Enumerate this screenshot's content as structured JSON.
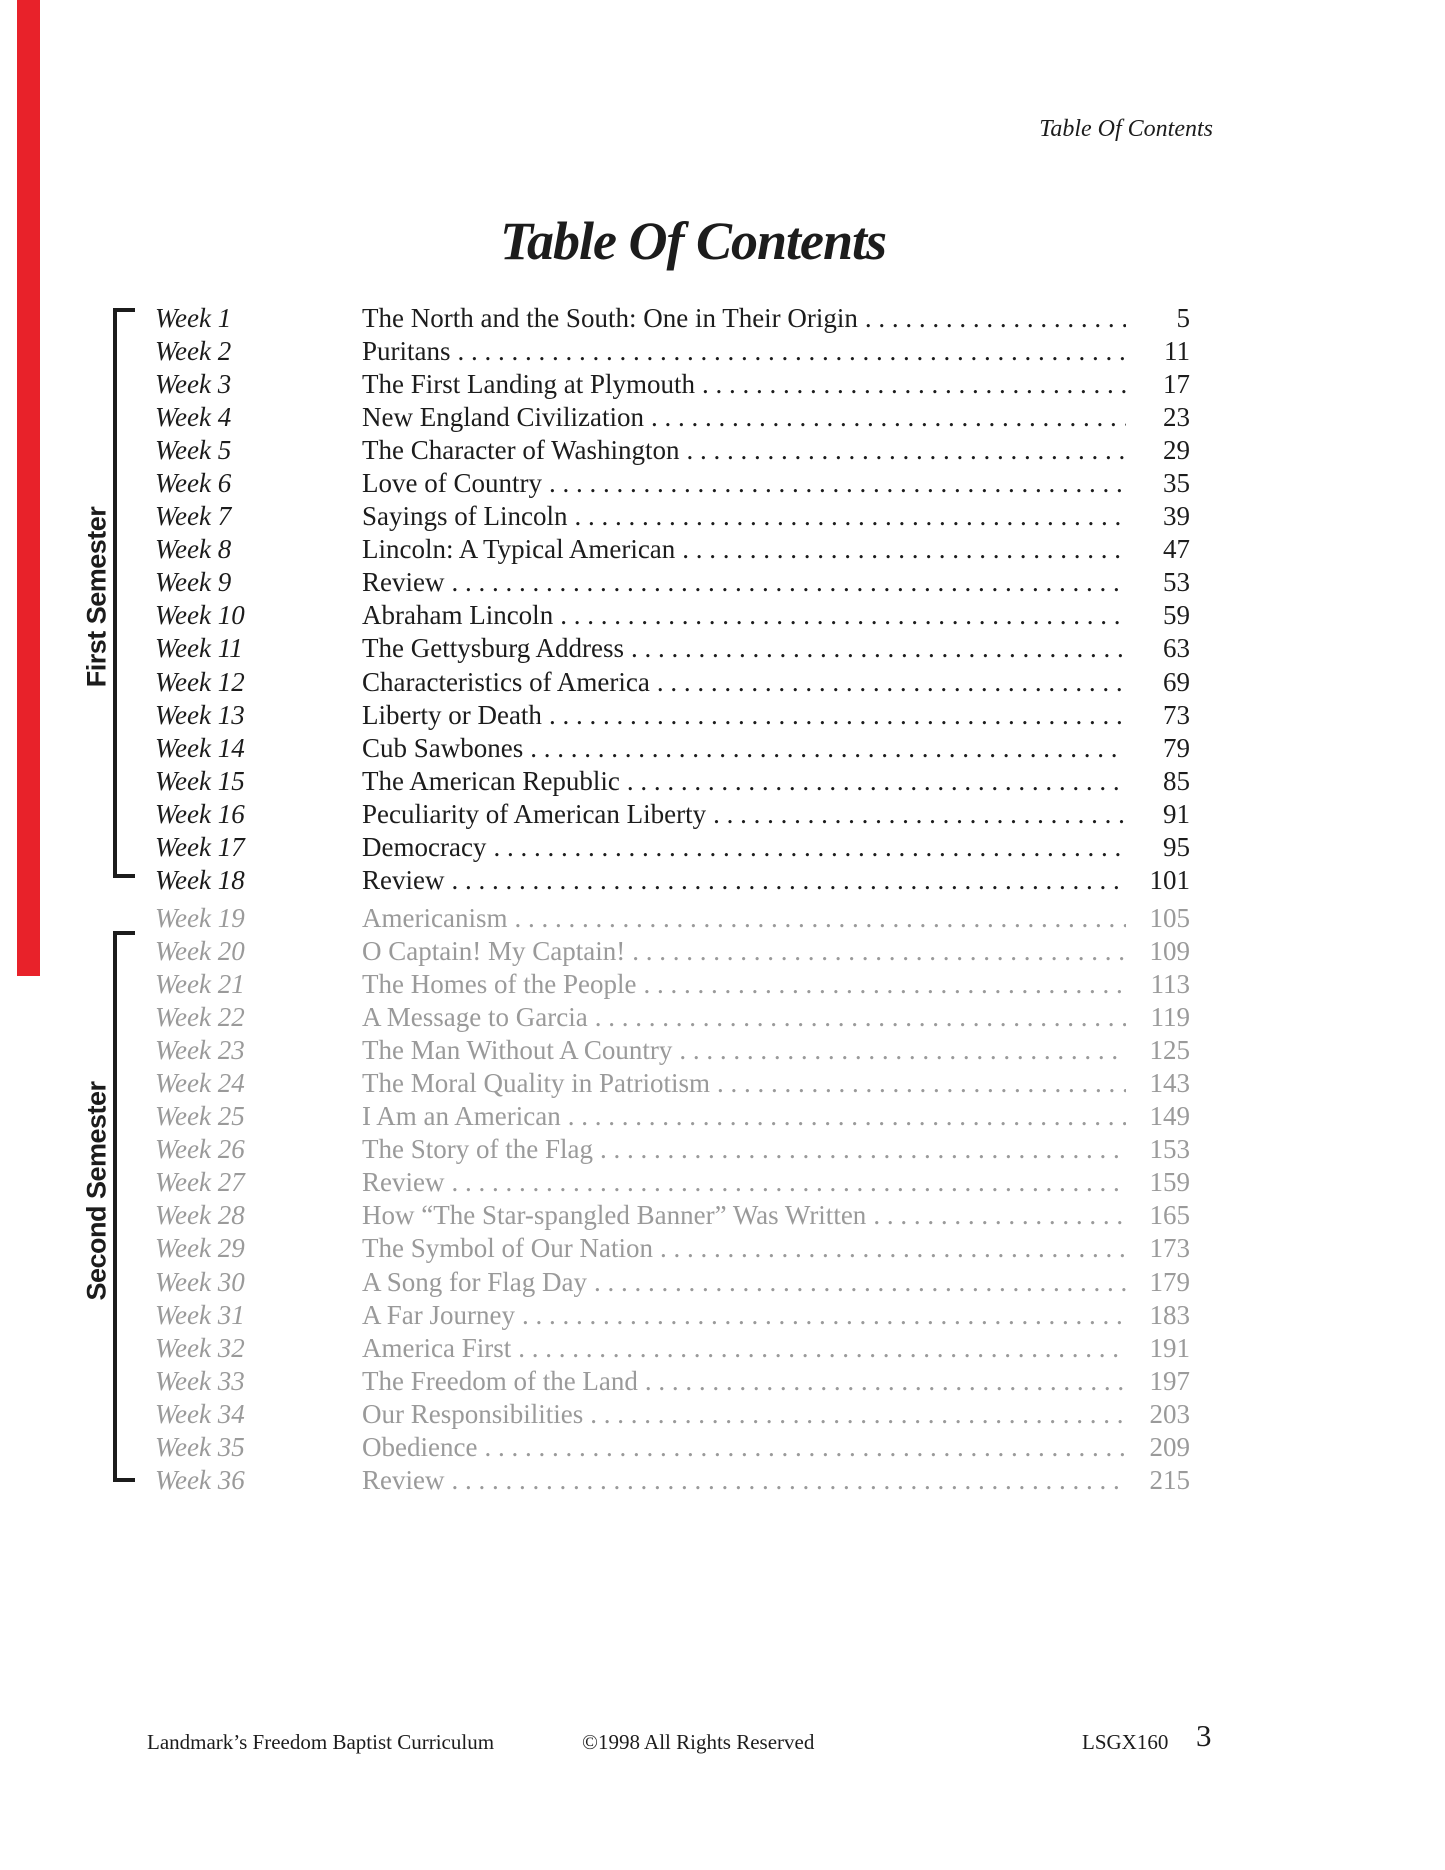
{
  "page": {
    "running_header": "Table Of Contents",
    "title": "Table Of Contents"
  },
  "colors": {
    "ink": "#1c1c1c",
    "muted_gray": "#9a9a9a",
    "scan_edge_red": "#e8222a"
  },
  "semesters": [
    {
      "label": "First Semester",
      "rows": [
        {
          "week": "Week 1",
          "title": "The North and the South: One in Their Origin",
          "page": "5"
        },
        {
          "week": "Week 2",
          "title": "Puritans",
          "page": "11"
        },
        {
          "week": "Week 3",
          "title": "The First Landing at Plymouth",
          "page": "17"
        },
        {
          "week": "Week 4",
          "title": "New England Civilization",
          "page": "23"
        },
        {
          "week": "Week 5",
          "title": "The Character of Washington",
          "page": "29"
        },
        {
          "week": "Week 6",
          "title": "Love of Country",
          "page": "35"
        },
        {
          "week": "Week 7",
          "title": "Sayings of Lincoln",
          "page": "39"
        },
        {
          "week": "Week 8",
          "title": "Lincoln: A Typical American",
          "page": "47"
        },
        {
          "week": "Week 9",
          "title": "Review",
          "page": "53"
        },
        {
          "week": "Week 10",
          "title": "Abraham Lincoln",
          "page": "59"
        },
        {
          "week": "Week 11",
          "title": "The Gettysburg Address",
          "page": "63"
        },
        {
          "week": "Week 12",
          "title": "Characteristics of America",
          "page": "69"
        },
        {
          "week": "Week 13",
          "title": "Liberty or Death",
          "page": "73"
        },
        {
          "week": "Week 14",
          "title": "Cub Sawbones",
          "page": "79"
        },
        {
          "week": "Week 15",
          "title": "The American Republic",
          "page": "85"
        },
        {
          "week": "Week 16",
          "title": "Peculiarity of American Liberty",
          "page": "91"
        },
        {
          "week": "Week 17",
          "title": "Democracy",
          "page": "95"
        },
        {
          "week": "Week 18",
          "title": "Review",
          "page": "101"
        }
      ]
    },
    {
      "label": "Second Semester",
      "rows": [
        {
          "week": "Week 19",
          "title": "Americanism",
          "page": "105"
        },
        {
          "week": "Week 20",
          "title": "O Captain! My Captain!",
          "page": "109"
        },
        {
          "week": "Week 21",
          "title": "The Homes of the People",
          "page": "113"
        },
        {
          "week": "Week 22",
          "title": "A Message to Garcia",
          "page": "119"
        },
        {
          "week": "Week 23",
          "title": "The Man Without A Country",
          "page": "125"
        },
        {
          "week": "Week 24",
          "title": "The Moral Quality in Patriotism",
          "page": "143"
        },
        {
          "week": "Week 25",
          "title": "I Am an American",
          "page": "149"
        },
        {
          "week": "Week 26",
          "title": "The Story of the Flag",
          "page": "153"
        },
        {
          "week": "Week 27",
          "title": "Review",
          "page": "159"
        },
        {
          "week": "Week 28",
          "title": "How “The Star-spangled Banner” Was Written",
          "page": "165"
        },
        {
          "week": "Week 29",
          "title": "The Symbol of Our Nation",
          "page": "173"
        },
        {
          "week": "Week 30",
          "title": "A Song for Flag Day",
          "page": "179"
        },
        {
          "week": "Week 31",
          "title": "A Far Journey",
          "page": "183"
        },
        {
          "week": "Week 32",
          "title": "America First",
          "page": "191"
        },
        {
          "week": "Week 33",
          "title": "The Freedom of the Land",
          "page": "197"
        },
        {
          "week": "Week 34",
          "title": "Our Responsibilities",
          "page": "203"
        },
        {
          "week": "Week 35",
          "title": "Obedience",
          "page": "209"
        },
        {
          "week": "Week 36",
          "title": "Review",
          "page": "215"
        }
      ]
    }
  ],
  "footer": {
    "publisher": "Landmark’s Freedom Baptist Curriculum",
    "copyright": "©1998 All Rights Reserved",
    "code": "LSGX160",
    "page_number": "3"
  }
}
